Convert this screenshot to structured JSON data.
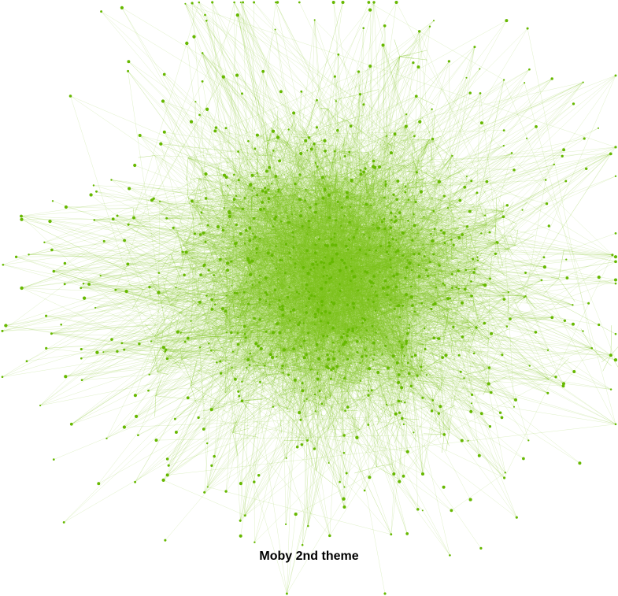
{
  "title": "Moby 2nd theme",
  "graph": {
    "type": "force-directed network",
    "node_color": "#66b800",
    "edge_color": "#7cc21a",
    "background": "#ffffff"
  }
}
